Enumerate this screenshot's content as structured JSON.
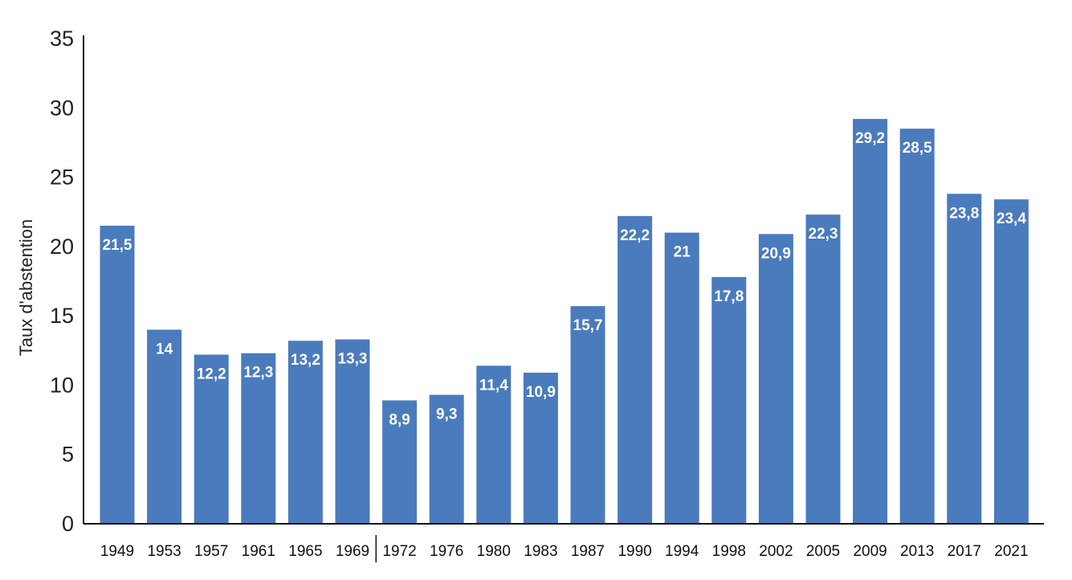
{
  "chart_data": {
    "type": "bar",
    "title": "",
    "xlabel": "",
    "ylabel": "Taux d'abstention",
    "ylim": [
      0,
      35
    ],
    "yticks": [
      "0",
      "5",
      "10",
      "15",
      "20",
      "25",
      "30",
      "35"
    ],
    "categories": [
      "1949",
      "1953",
      "1957",
      "1961",
      "1965",
      "1969",
      "1972",
      "1976",
      "1980",
      "1983",
      "1987",
      "1990",
      "1994",
      "1998",
      "2002",
      "2005",
      "2009",
      "2013",
      "2017",
      "2021"
    ],
    "values": [
      21.5,
      14,
      12.2,
      12.3,
      13.2,
      13.3,
      8.9,
      9.3,
      11.4,
      10.9,
      15.7,
      22.2,
      21,
      17.8,
      20.9,
      22.3,
      29.2,
      28.5,
      23.8,
      23.4
    ],
    "value_labels": [
      "21,5",
      "14",
      "12,2",
      "12,3",
      "13,2",
      "13,3",
      "8,9",
      "9,3",
      "11,4",
      "10,9",
      "15,7",
      "22,2",
      "21",
      "17,8",
      "20,9",
      "22,3",
      "29,2",
      "28,5",
      "23,8",
      "23,4"
    ],
    "bar_color": "#4A7BBD",
    "grid": false,
    "legend": "none"
  }
}
